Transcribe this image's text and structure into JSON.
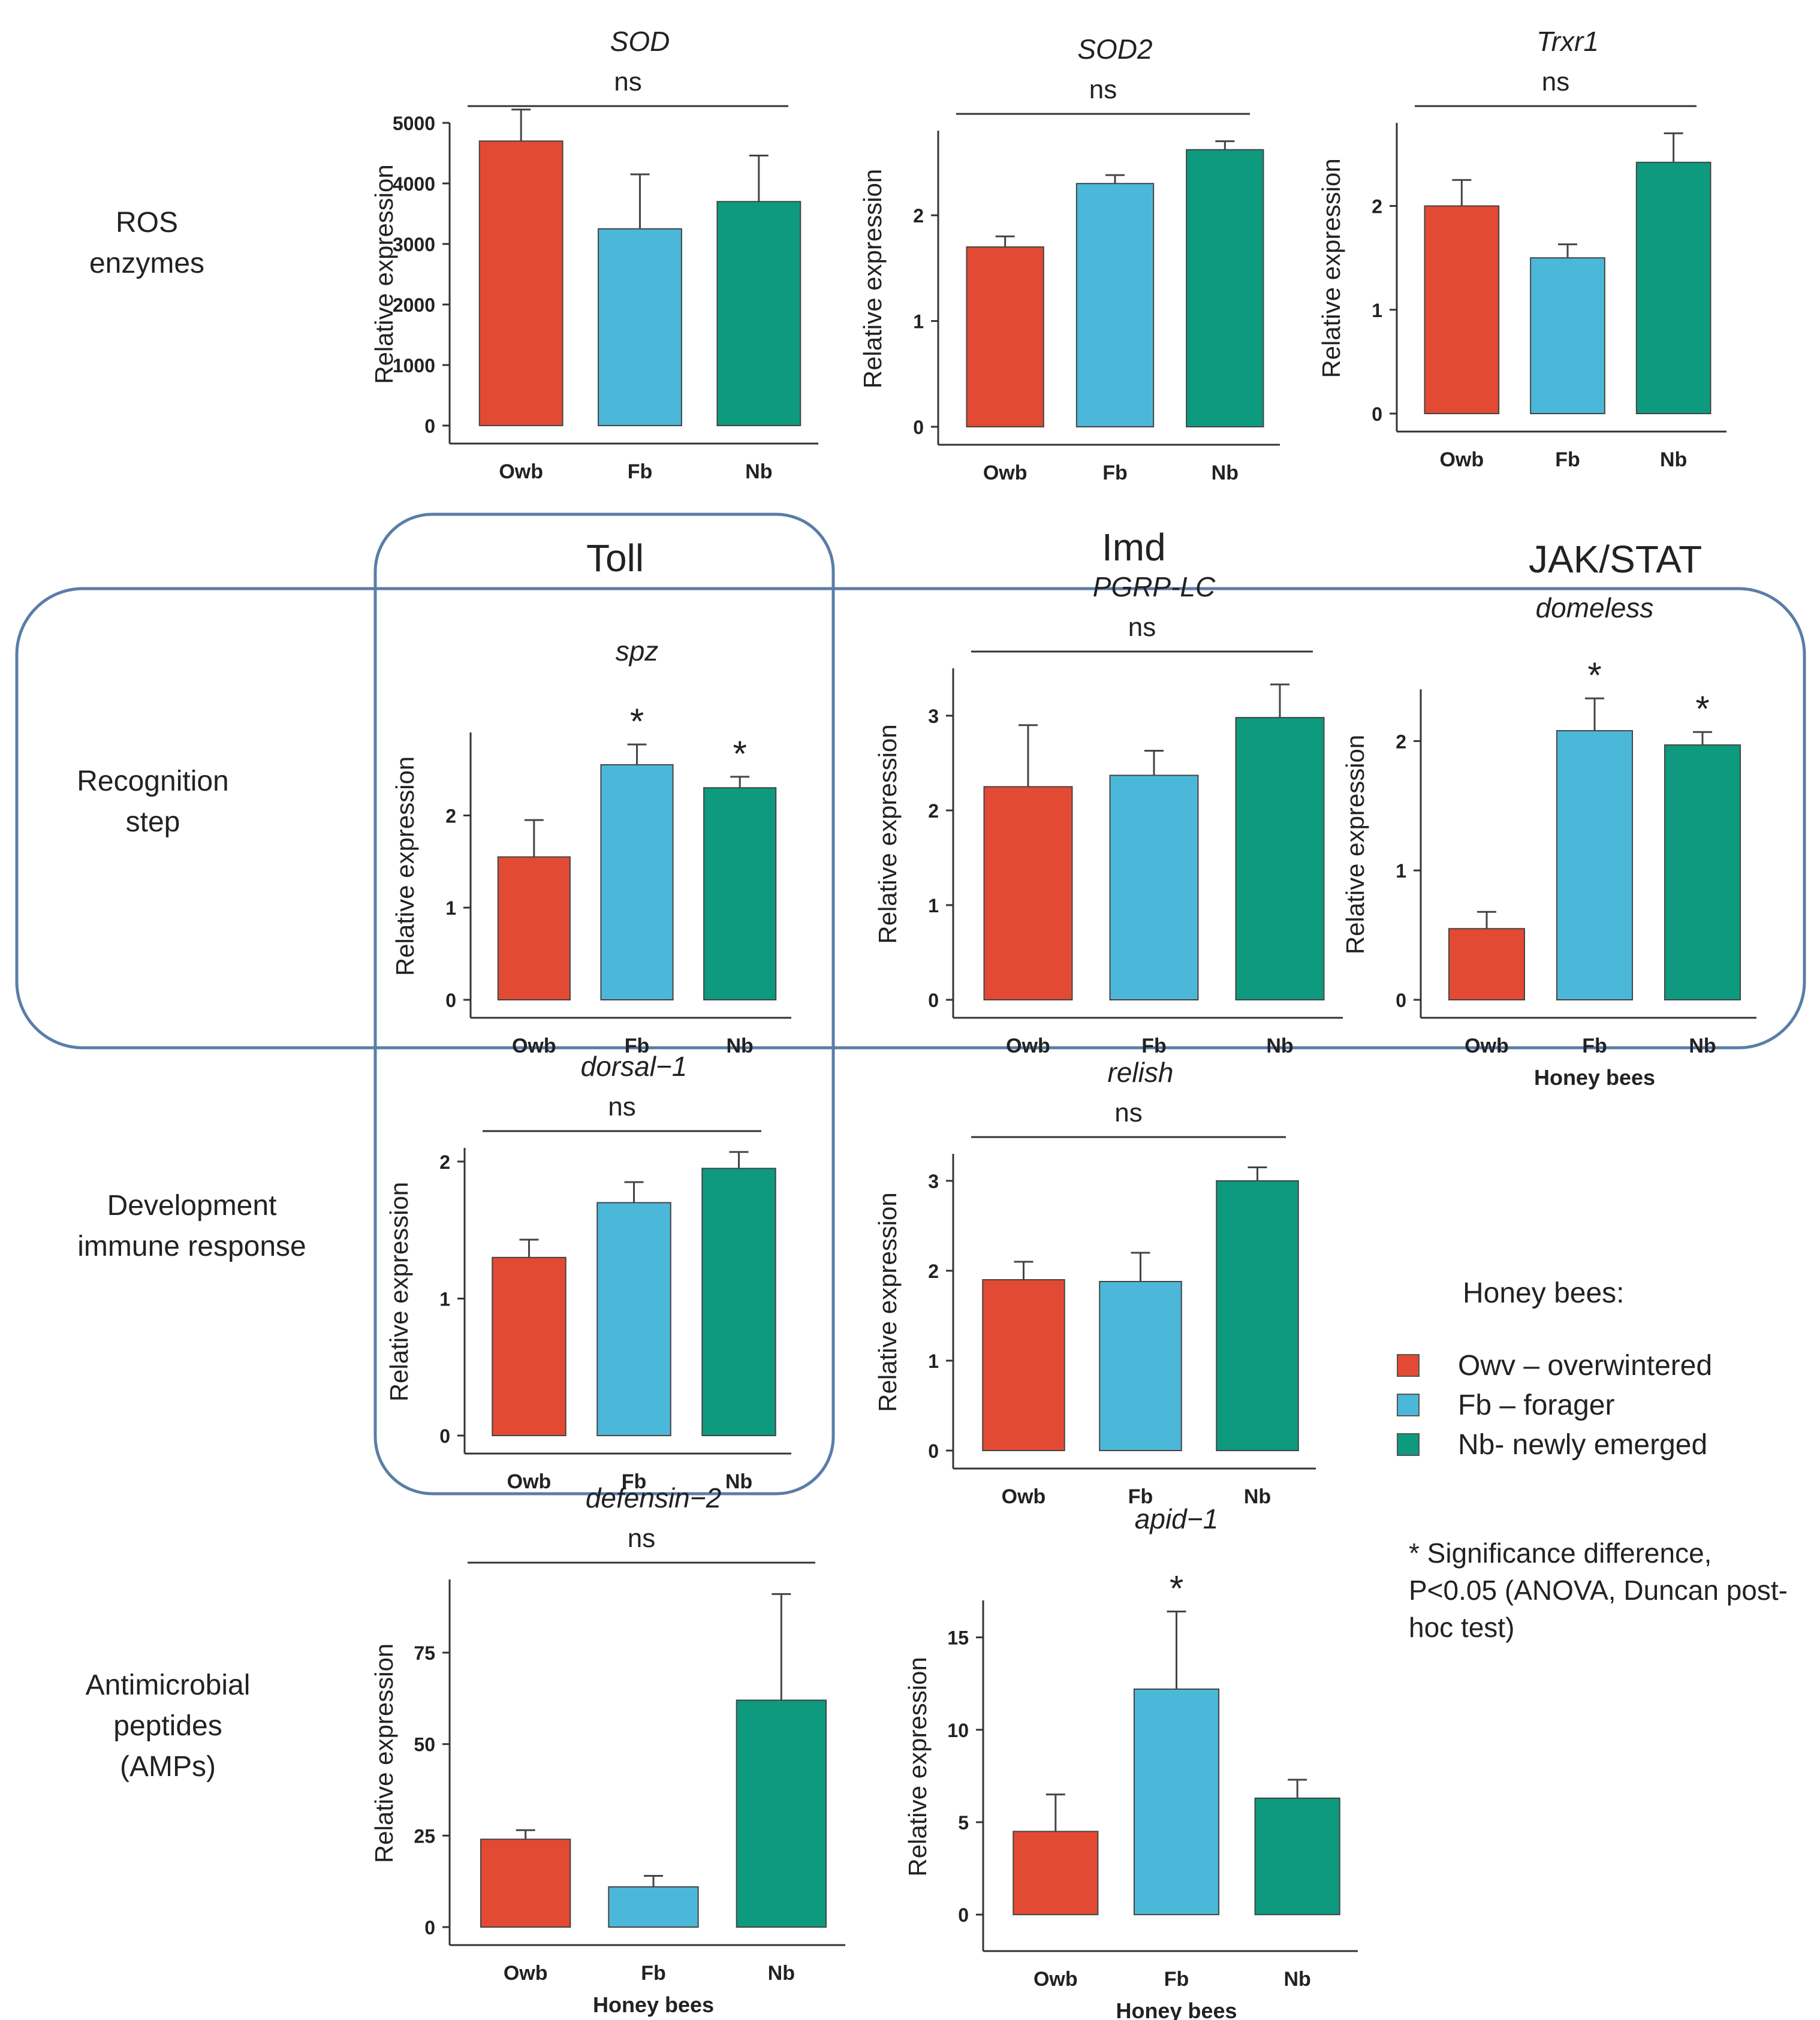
{
  "row_labels": {
    "ros": [
      "ROS",
      "enzymes"
    ],
    "recognition": [
      "Recognition",
      "step"
    ],
    "development": [
      "Development",
      "immune response"
    ],
    "amp": [
      "Antimicrobial",
      "peptides",
      "(AMPs)"
    ]
  },
  "pathway_labels": {
    "toll": "Toll",
    "imd": "Imd",
    "jakstat": "JAK/STAT"
  },
  "legend": {
    "title": "Honey bees:",
    "items": [
      {
        "label": "Owv – overwintered",
        "color": "#E34A33"
      },
      {
        "label": "Fb – forager",
        "color": "#4CB8D9"
      },
      {
        "label": "Nb- newly emerged",
        "color": "#0E9A7F"
      }
    ]
  },
  "note": "* Significance difference, P<0.05 (ANOVA, Duncan post-hoc test)",
  "colors": {
    "Owb": "#E34A33",
    "Fb": "#4CB8D9",
    "Nb": "#0E9A7F",
    "axis": "#333333",
    "box": "#5A7DA8"
  },
  "chart_data": [
    {
      "type": "bar",
      "title": "SOD",
      "categories": [
        "Owb",
        "Fb",
        "Nb"
      ],
      "values": [
        4700,
        3250,
        3700
      ],
      "errors": [
        520,
        900,
        760
      ],
      "ylim": [
        0,
        5000
      ],
      "yticks": [
        0,
        1000,
        2000,
        3000,
        4000,
        5000
      ],
      "ylabel": "Relative expression",
      "xlabel": "",
      "annotation": "ns",
      "stars": []
    },
    {
      "type": "bar",
      "title": "SOD2",
      "categories": [
        "Owb",
        "Fb",
        "Nb"
      ],
      "values": [
        1.7,
        2.3,
        2.62
      ],
      "errors": [
        0.1,
        0.08,
        0.08
      ],
      "ylim": [
        0,
        2.8
      ],
      "yticks": [
        0,
        1,
        2
      ],
      "ylabel": "Relative expression",
      "xlabel": "",
      "annotation": "ns",
      "stars": []
    },
    {
      "type": "bar",
      "title": "Trxr1",
      "categories": [
        "Owb",
        "Fb",
        "Nb"
      ],
      "values": [
        2.0,
        1.5,
        2.42
      ],
      "errors": [
        0.25,
        0.13,
        0.28
      ],
      "ylim": [
        0,
        2.8
      ],
      "yticks": [
        0,
        1,
        2
      ],
      "ylabel": "Relative expression",
      "xlabel": "",
      "annotation": "ns",
      "stars": []
    },
    {
      "type": "bar",
      "title": "spz",
      "categories": [
        "Owb",
        "Fb",
        "Nb"
      ],
      "values": [
        1.55,
        2.55,
        2.3
      ],
      "errors": [
        0.4,
        0.22,
        0.12
      ],
      "ylim": [
        0,
        2.9
      ],
      "yticks": [
        0,
        1,
        2
      ],
      "ylabel": "Relative expression",
      "xlabel": "",
      "annotation": "",
      "stars": [
        "",
        "*",
        "*"
      ]
    },
    {
      "type": "bar",
      "title": "PGRP-LC",
      "categories": [
        "Owb",
        "Fb",
        "Nb"
      ],
      "values": [
        2.25,
        2.37,
        2.98
      ],
      "errors": [
        0.65,
        0.26,
        0.35
      ],
      "ylim": [
        0,
        3.5
      ],
      "yticks": [
        0,
        1,
        2,
        3
      ],
      "ylabel": "Relative expression",
      "xlabel": "",
      "annotation": "ns",
      "stars": []
    },
    {
      "type": "bar",
      "title": "domeless",
      "categories": [
        "Owb",
        "Fb",
        "Nb"
      ],
      "values": [
        0.55,
        2.08,
        1.97
      ],
      "errors": [
        0.13,
        0.25,
        0.1
      ],
      "ylim": [
        0,
        2.4
      ],
      "yticks": [
        0,
        1,
        2
      ],
      "ylabel": "Relative expression",
      "xlabel": "Honey bees",
      "annotation": "",
      "stars": [
        "",
        "*",
        "*"
      ]
    },
    {
      "type": "bar",
      "title": "dorsal−1",
      "categories": [
        "Owb",
        "Fb",
        "Nb"
      ],
      "values": [
        1.3,
        1.7,
        1.95
      ],
      "errors": [
        0.13,
        0.15,
        0.12
      ],
      "ylim": [
        0,
        2.1
      ],
      "yticks": [
        0,
        1,
        2
      ],
      "ylabel": "Relative expression",
      "xlabel": "",
      "annotation": "ns",
      "stars": []
    },
    {
      "type": "bar",
      "title": "relish",
      "categories": [
        "Owb",
        "Fb",
        "Nb"
      ],
      "values": [
        1.9,
        1.88,
        3.0
      ],
      "errors": [
        0.2,
        0.32,
        0.15
      ],
      "ylim": [
        0,
        3.3
      ],
      "yticks": [
        0,
        1,
        2,
        3
      ],
      "ylabel": "Relative expression",
      "xlabel": "",
      "annotation": "ns",
      "stars": []
    },
    {
      "type": "bar",
      "title": "defensin−2",
      "categories": [
        "Owb",
        "Fb",
        "Nb"
      ],
      "values": [
        24,
        11,
        62
      ],
      "errors": [
        2.5,
        3,
        29
      ],
      "ylim": [
        0,
        95
      ],
      "yticks": [
        0,
        25,
        50,
        75
      ],
      "ylabel": "Relative expression",
      "xlabel": "Honey bees",
      "annotation": "ns",
      "stars": []
    },
    {
      "type": "bar",
      "title": "apid−1",
      "categories": [
        "Owb",
        "Fb",
        "Nb"
      ],
      "values": [
        4.5,
        12.2,
        6.3
      ],
      "errors": [
        2.0,
        4.2,
        1.0
      ],
      "ylim": [
        -1,
        17
      ],
      "yticks": [
        0,
        5,
        10,
        15
      ],
      "ylabel": "Relative expression",
      "xlabel": "Honey bees",
      "annotation": "",
      "stars": [
        "",
        "*",
        ""
      ]
    }
  ]
}
